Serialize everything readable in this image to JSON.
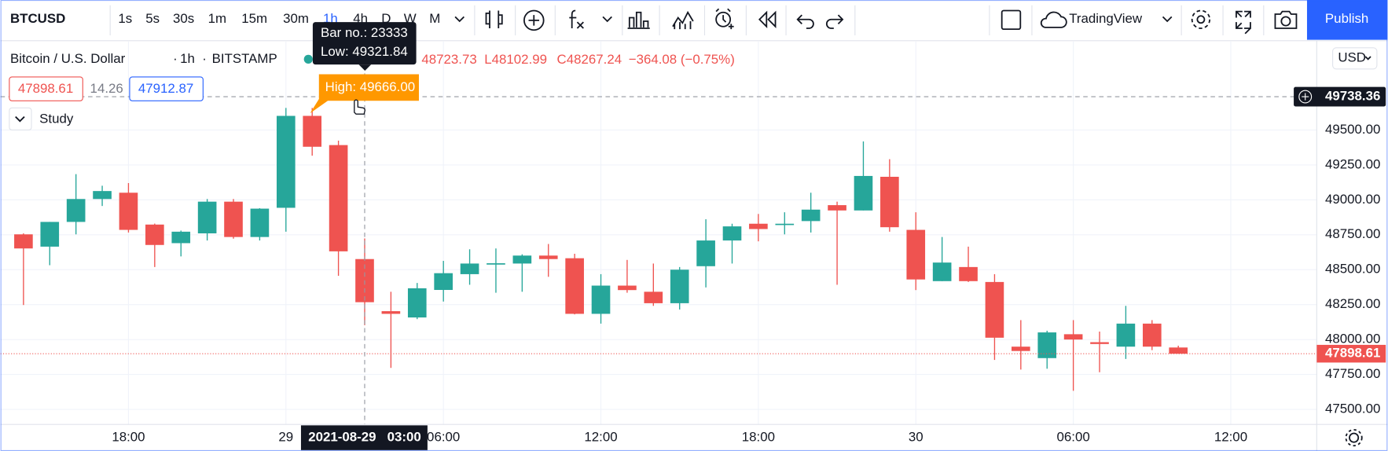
{
  "toolbar": {
    "symbol": "BTCUSD",
    "intervals": [
      "1s",
      "5s",
      "30s",
      "1m",
      "15m",
      "30m",
      "1h",
      "4h",
      "D",
      "W",
      "M"
    ],
    "layout_name": "TradingView",
    "publish": "Publish"
  },
  "legend": {
    "title": "Bitcoin / U.S. Dollar",
    "interval": "1h",
    "exchange": "BITSTAMP",
    "ohlc": [
      "48723.73",
      "L48102.99",
      "C48267.24",
      "−364.08 (−0.75%)"
    ],
    "sell": "47898.61",
    "spread": "14.26",
    "buy": "47912.87",
    "study": "Study"
  },
  "tooltip": {
    "bar_no": "Bar no.: 23333",
    "low": "Low: 49321.84",
    "high": "High: 49666.00"
  },
  "currency": "USD",
  "chart_data": {
    "type": "candlestick",
    "up_color": "#26a69a",
    "down_color": "#ef5350",
    "grid": true,
    "x": [
      "2021-08-28 14:00",
      "2021-08-28 15:00",
      "2021-08-28 16:00",
      "2021-08-28 17:00",
      "2021-08-28 18:00",
      "2021-08-28 19:00",
      "2021-08-28 20:00",
      "2021-08-28 21:00",
      "2021-08-28 22:00",
      "2021-08-28 23:00",
      "2021-08-29 00:00",
      "2021-08-29 01:00",
      "2021-08-29 02:00",
      "2021-08-29 03:00",
      "2021-08-29 04:00",
      "2021-08-29 05:00",
      "2021-08-29 06:00",
      "2021-08-29 07:00",
      "2021-08-29 08:00",
      "2021-08-29 09:00",
      "2021-08-29 10:00",
      "2021-08-29 11:00",
      "2021-08-29 12:00",
      "2021-08-29 13:00",
      "2021-08-29 14:00",
      "2021-08-29 15:00",
      "2021-08-29 16:00",
      "2021-08-29 17:00",
      "2021-08-29 18:00",
      "2021-08-29 19:00",
      "2021-08-29 20:00",
      "2021-08-29 21:00",
      "2021-08-29 22:00",
      "2021-08-29 23:00",
      "2021-08-30 00:00",
      "2021-08-30 01:00",
      "2021-08-30 02:00",
      "2021-08-30 03:00",
      "2021-08-30 04:00",
      "2021-08-30 05:00",
      "2021-08-30 06:00",
      "2021-08-30 07:00",
      "2021-08-30 08:00",
      "2021-08-30 09:00",
      "2021-08-30 10:00"
    ],
    "open": [
      48753,
      48665,
      48842,
      49006,
      49051,
      48823,
      48690,
      48760,
      48987,
      48734,
      48943,
      49601,
      49392,
      48576,
      48203,
      48158,
      48355,
      48468,
      48544,
      48544,
      48601,
      48582,
      48184,
      48386,
      48342,
      48260,
      48525,
      48709,
      48829,
      48823,
      48848,
      48962,
      48924,
      49165,
      48785,
      48418,
      48519,
      48412,
      47949,
      47867,
      48038,
      47981,
      47949,
      48114,
      47943
    ],
    "high": [
      48760,
      48842,
      49184,
      49101,
      49120,
      48830,
      48780,
      49006,
      49006,
      48940,
      49658,
      49658,
      49424,
      48723.73,
      48342,
      48405,
      48563,
      48646,
      48652,
      48610,
      48684,
      48614,
      48468,
      48570,
      48544,
      48519,
      48861,
      48829,
      48899,
      48911,
      49051,
      48987,
      49418,
      49291,
      48911,
      48734,
      48665,
      48468,
      48139,
      48063,
      48139,
      48057,
      48241,
      48139,
      47956
    ],
    "low": [
      48247,
      48532,
      48753,
      48956,
      48766,
      48519,
      48595,
      48709,
      48722,
      48709,
      48772,
      49316,
      48456,
      48102.99,
      47797,
      48146,
      48272,
      48392,
      48335,
      48342,
      48449,
      48180,
      48114,
      48335,
      48241,
      48215,
      48373,
      48544,
      48703,
      48753,
      48766,
      48392,
      48924,
      48772,
      48354,
      48418,
      48412,
      47854,
      47785,
      47791,
      47633,
      47766,
      47861,
      47924,
      47898.61
    ],
    "close": [
      48652,
      48842,
      49006,
      49063,
      48785,
      48677,
      48772,
      48987,
      48734,
      48937,
      49601,
      49380,
      48631.32,
      48267.24,
      48184,
      48367,
      48475,
      48544,
      48546,
      48601,
      48576,
      48184,
      48386,
      48354,
      48260,
      48500,
      48709,
      48810,
      48791,
      48829,
      48930,
      48924,
      49171,
      48804,
      48430,
      48551,
      48418,
      48013,
      47918,
      48051,
      48000,
      47968,
      48114,
      47949,
      47898.61
    ],
    "ylim": [
      47392,
      50133
    ],
    "yticks": [
      {
        "value": 47500,
        "label": "47500.00"
      },
      {
        "value": 47750,
        "label": "47750.00"
      },
      {
        "value": 48000,
        "label": "48000.00"
      },
      {
        "value": 48250,
        "label": "48250.00"
      },
      {
        "value": 48500,
        "label": "48500.00"
      },
      {
        "value": 48750,
        "label": "48750.00"
      },
      {
        "value": 49000,
        "label": "49000.00"
      },
      {
        "value": 49250,
        "label": "49250.00"
      },
      {
        "value": 49500,
        "label": "49500.00"
      }
    ],
    "xticks": [
      {
        "value": "2021-08-28 18:00",
        "label": "18:00"
      },
      {
        "value": "2021-08-29 00:00",
        "label": "29"
      },
      {
        "value": "2021-08-29 06:00",
        "label": "06:00"
      },
      {
        "value": "2021-08-29 12:00",
        "label": "12:00"
      },
      {
        "value": "2021-08-29 18:00",
        "label": "18:00"
      },
      {
        "value": "2021-08-30 00:00",
        "label": "30"
      },
      {
        "value": "2021-08-30 06:00",
        "label": "06:00"
      },
      {
        "value": "2021-08-30 12:00",
        "label": "12:00"
      }
    ],
    "last_price": {
      "value": 47898.61,
      "label": "47898.61"
    },
    "crosshair": {
      "price": {
        "value": 49738.36,
        "label": "49738.36"
      },
      "time": {
        "value": "2021-08-29 03:00",
        "label": "2021-08-29   03:00"
      }
    }
  }
}
